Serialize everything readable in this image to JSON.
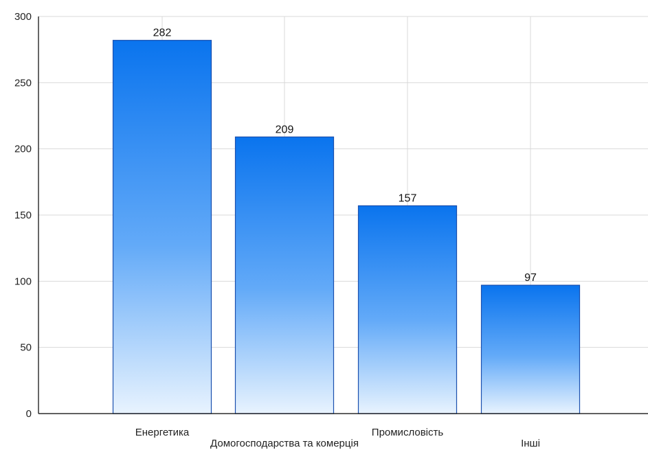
{
  "chart_data": {
    "type": "bar",
    "categories": [
      "Енергетика",
      "Домогосподарства та комерція",
      "Промисловість",
      "Інші"
    ],
    "values": [
      282,
      209,
      157,
      97
    ],
    "data_labels": [
      "282",
      "209",
      "157",
      "97"
    ],
    "y_ticks": [
      "0",
      "50",
      "100",
      "150",
      "200",
      "250",
      "300"
    ],
    "ylim": [
      0,
      300
    ],
    "grid": true,
    "legend": "none",
    "title": "",
    "xlabel": "",
    "ylabel": "",
    "colors": {
      "bar_top": "#0a74ee",
      "bar_mid": "#63aaf8",
      "bar_bottom": "#e8f3fe",
      "bar_border": "#1a4fae",
      "grid": "#d9d9d9",
      "axis": "#000000"
    }
  }
}
